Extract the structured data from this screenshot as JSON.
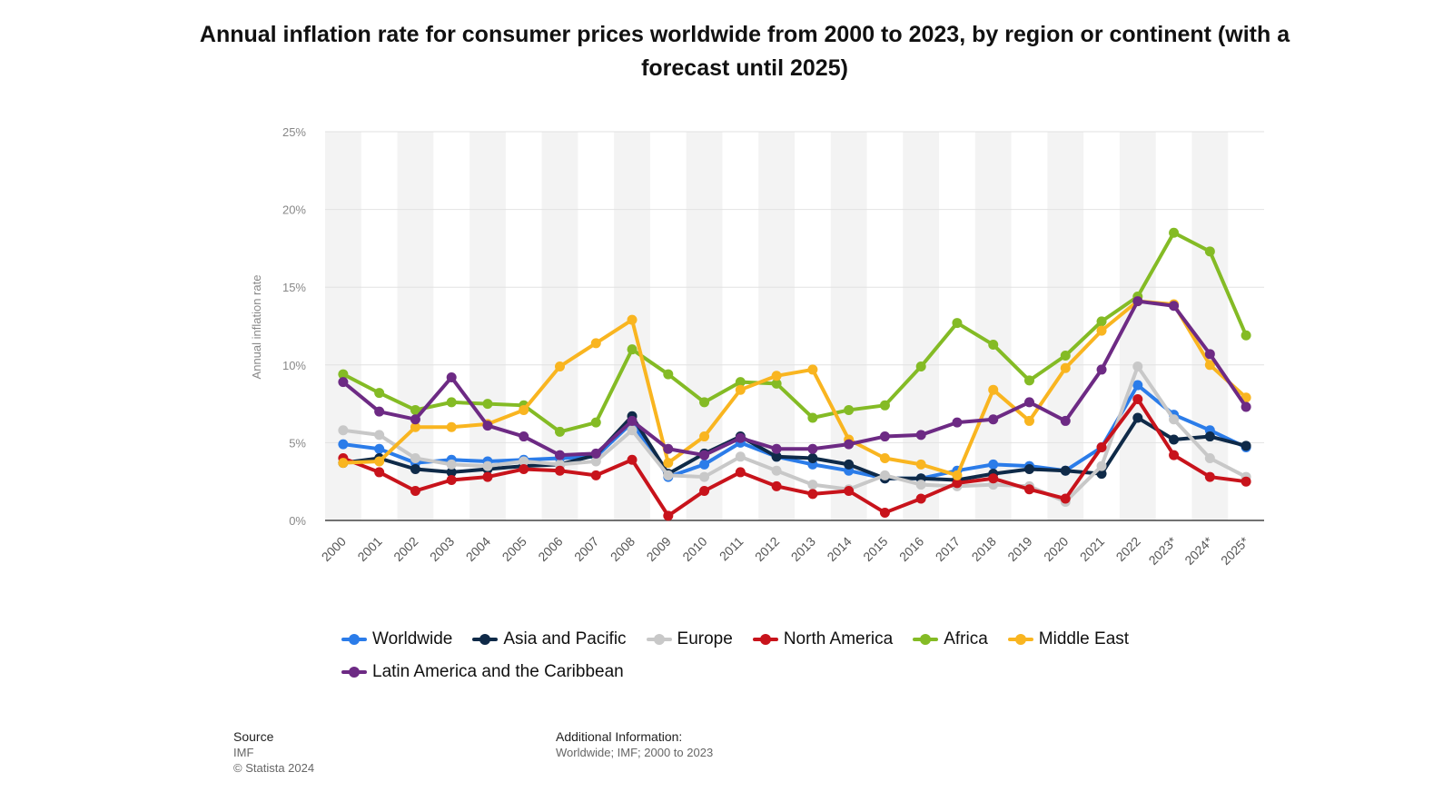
{
  "chart_data": {
    "type": "line",
    "title": "Annual inflation rate for consumer prices worldwide from 2000 to 2023, by region or continent (with a forecast until 2025)",
    "ylabel": "Annual inflation rate",
    "xlabel": "",
    "ylim": [
      0,
      25
    ],
    "yticks": [
      "0%",
      "5%",
      "10%",
      "15%",
      "20%",
      "25%"
    ],
    "ytick_values": [
      0,
      5,
      10,
      15,
      20,
      25
    ],
    "categories": [
      "2000",
      "2001",
      "2002",
      "2003",
      "2004",
      "2005",
      "2006",
      "2007",
      "2008",
      "2009",
      "2010",
      "2011",
      "2012",
      "2013",
      "2014",
      "2015",
      "2016",
      "2017",
      "2018",
      "2019",
      "2020",
      "2021",
      "2022",
      "2023*",
      "2024*",
      "2025*"
    ],
    "series": [
      {
        "name": "Worldwide",
        "color": "#2b7ce9",
        "values": [
          4.9,
          4.6,
          3.7,
          3.9,
          3.8,
          3.9,
          4.0,
          4.1,
          6.3,
          2.8,
          3.6,
          5.0,
          4.1,
          3.6,
          3.2,
          2.7,
          2.7,
          3.2,
          3.6,
          3.5,
          3.2,
          4.7,
          8.7,
          6.8,
          5.8,
          4.7
        ]
      },
      {
        "name": "Asia and Pacific",
        "color": "#0f2a48",
        "values": [
          3.7,
          4.0,
          3.3,
          3.1,
          3.3,
          3.5,
          3.6,
          4.2,
          6.7,
          3.0,
          4.3,
          5.4,
          4.1,
          4.0,
          3.6,
          2.7,
          2.7,
          2.6,
          3.0,
          3.3,
          3.2,
          3.0,
          6.6,
          5.2,
          5.4,
          4.8
        ]
      },
      {
        "name": "Europe",
        "color": "#c8c8c8",
        "values": [
          5.8,
          5.5,
          4.0,
          3.6,
          3.5,
          3.8,
          3.6,
          3.8,
          5.8,
          2.9,
          2.8,
          4.1,
          3.2,
          2.3,
          2.0,
          2.9,
          2.3,
          2.2,
          2.3,
          2.2,
          1.2,
          3.5,
          9.9,
          6.5,
          4.0,
          2.8
        ]
      },
      {
        "name": "North America",
        "color": "#c8131b",
        "values": [
          4.0,
          3.1,
          1.9,
          2.6,
          2.8,
          3.3,
          3.2,
          2.9,
          3.9,
          0.3,
          1.9,
          3.1,
          2.2,
          1.7,
          1.9,
          0.5,
          1.4,
          2.4,
          2.7,
          2.0,
          1.4,
          4.7,
          7.8,
          4.2,
          2.8,
          2.5
        ]
      },
      {
        "name": "Africa",
        "color": "#84bb25",
        "values": [
          9.4,
          8.2,
          7.1,
          7.6,
          7.5,
          7.4,
          5.7,
          6.3,
          11.0,
          9.4,
          7.6,
          8.9,
          8.8,
          6.6,
          7.1,
          7.4,
          9.9,
          12.7,
          11.3,
          9.0,
          10.6,
          12.8,
          14.4,
          18.5,
          17.3,
          11.9
        ]
      },
      {
        "name": "Middle East",
        "color": "#f9b520",
        "values": [
          3.7,
          3.8,
          6.0,
          6.0,
          6.2,
          7.1,
          9.9,
          11.4,
          12.9,
          3.7,
          5.4,
          8.4,
          9.3,
          9.7,
          5.2,
          4.0,
          3.6,
          2.9,
          8.4,
          6.4,
          9.8,
          12.2,
          14.1,
          13.9,
          10.0,
          7.9
        ]
      },
      {
        "name": "Latin America and the Caribbean",
        "color": "#6d2a84",
        "values": [
          8.9,
          7.0,
          6.5,
          9.2,
          6.1,
          5.4,
          4.2,
          4.3,
          6.4,
          4.6,
          4.2,
          5.3,
          4.6,
          4.6,
          4.9,
          5.4,
          5.5,
          6.3,
          6.5,
          7.6,
          6.4,
          9.7,
          14.1,
          13.8,
          10.7,
          7.3
        ]
      }
    ]
  },
  "source": {
    "label": "Source",
    "line1": "IMF",
    "line2": "© Statista 2024"
  },
  "additional_info": {
    "label": "Additional Information:",
    "text": "Worldwide; IMF; 2000 to 2023"
  }
}
